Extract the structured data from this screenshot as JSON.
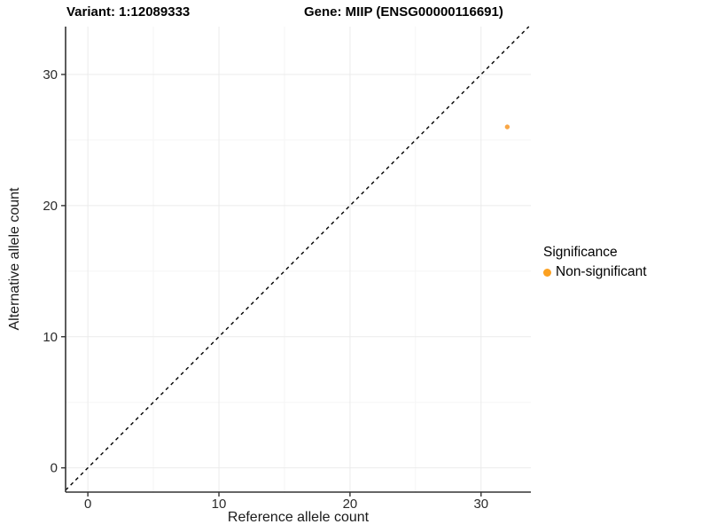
{
  "header": {
    "variant_title": "Variant: 1:12089333",
    "gene_title": "Gene: MIIP (ENSG00000116691)"
  },
  "chart_data": {
    "type": "scatter",
    "xlabel": "Reference allele count",
    "ylabel": "Alternative allele count",
    "xlim": [
      -1.7,
      33.8
    ],
    "ylim": [
      -1.85,
      33.65
    ],
    "x_ticks": [
      0,
      10,
      20,
      30
    ],
    "y_ticks": [
      0,
      10,
      20,
      30
    ],
    "x_minor_ticks": [
      5,
      15,
      25
    ],
    "y_minor_ticks": [
      5,
      15,
      25
    ],
    "grid": "major and minor, light gray on white",
    "reference_line": {
      "equation": "y = x",
      "style": "dashed",
      "color": "#000000",
      "x1": -1.7,
      "y1": -1.7,
      "x2": 33.65,
      "y2": 33.65
    },
    "series": [
      {
        "name": "Non-significant",
        "color": "#F9A23C",
        "points": [
          {
            "x": 32,
            "y": 26
          }
        ]
      }
    ],
    "legend": {
      "title": "Significance",
      "position": "right",
      "items": [
        {
          "label": "Non-significant",
          "color": "#FCA121"
        }
      ]
    },
    "colors": {
      "axis_line": "#333333",
      "tick_label": "#2b2b2b",
      "major_grid": "#ebebeb",
      "minor_grid": "#f5f5f5",
      "point": "#F9A23C",
      "dashed_line": "#000000"
    }
  }
}
